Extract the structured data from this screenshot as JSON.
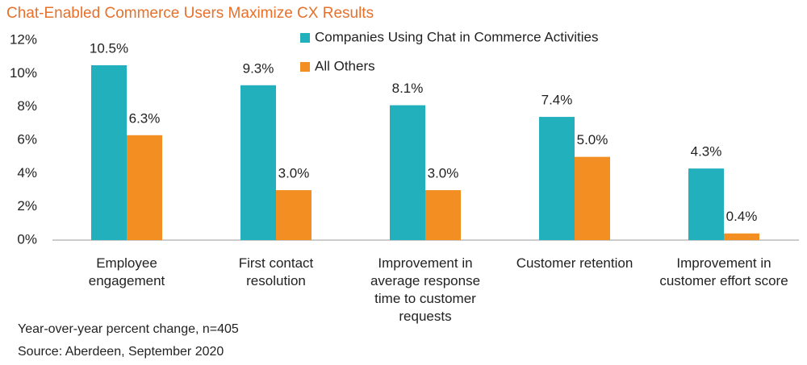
{
  "chart_data": {
    "type": "bar",
    "title": "Chat-Enabled Commerce Users Maximize CX Results",
    "categories": [
      "Employee engagement",
      "First contact resolution",
      "Improvement in average response time to customer requests",
      "Customer retention",
      "Improvement in customer effort score"
    ],
    "series": [
      {
        "name": "Companies Using Chat in Commerce Activities",
        "color": "#23b0bd",
        "values": [
          10.5,
          9.3,
          8.1,
          7.4,
          4.3
        ],
        "value_labels": [
          "10.5%",
          "9.3%",
          "8.1%",
          "7.4%",
          "4.3%"
        ]
      },
      {
        "name": "All Others",
        "color": "#f28e22",
        "values": [
          6.3,
          3.0,
          3.0,
          5.0,
          0.4
        ],
        "value_labels": [
          "6.3%",
          "3.0%",
          "3.0%",
          "5.0%",
          "0.4%"
        ]
      }
    ],
    "ylim": [
      0,
      12
    ],
    "yticks": [
      {
        "value": 0,
        "label": "0%"
      },
      {
        "value": 2,
        "label": "2%"
      },
      {
        "value": 4,
        "label": "4%"
      },
      {
        "value": 6,
        "label": "6%"
      },
      {
        "value": 8,
        "label": "8%"
      },
      {
        "value": 10,
        "label": "10%"
      },
      {
        "value": 12,
        "label": "12%"
      }
    ],
    "grid": false,
    "notes": [
      "Year-over-year percent change, n=405",
      "Source: Aberdeen, September 2020"
    ]
  }
}
